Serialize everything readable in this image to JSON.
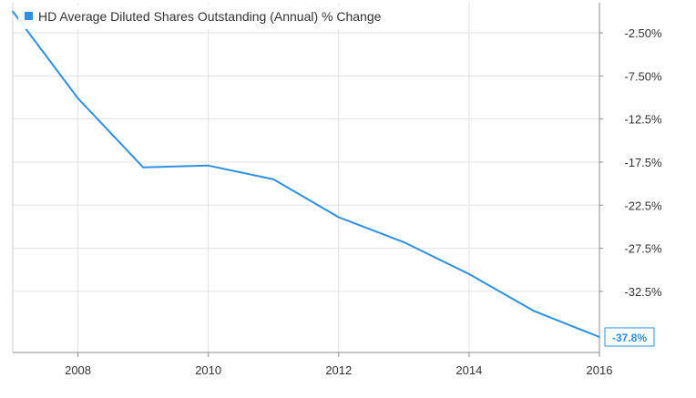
{
  "chart_data": {
    "type": "line",
    "legend": {
      "label": "HD Average Diluted Shares Outstanding (Annual) % Change",
      "placement": "top-left"
    },
    "series": [
      {
        "name": "HD Average Diluted Shares Outstanding (Annual) % Change",
        "color": "#2f8fe0",
        "points": [
          {
            "x": 2007.0,
            "y": 0.0
          },
          {
            "x": 2008.0,
            "y": -10.1
          },
          {
            "x": 2009.0,
            "y": -18.1
          },
          {
            "x": 2010.0,
            "y": -17.9
          },
          {
            "x": 2011.0,
            "y": -19.5
          },
          {
            "x": 2012.0,
            "y": -23.9
          },
          {
            "x": 2013.0,
            "y": -26.8
          },
          {
            "x": 2014.0,
            "y": -30.5
          },
          {
            "x": 2015.0,
            "y": -34.8
          },
          {
            "x": 2016.0,
            "y": -37.8
          }
        ]
      }
    ],
    "x_ticks": [
      "2008",
      "2010",
      "2012",
      "2014",
      "2016"
    ],
    "x_tick_values": [
      2008,
      2010,
      2012,
      2014,
      2016
    ],
    "y_ticks": [
      "-2.50%",
      "-7.50%",
      "-12.5%",
      "-17.5%",
      "-22.5%",
      "-27.5%",
      "-32.5%"
    ],
    "y_tick_values": [
      -2.5,
      -7.5,
      -12.5,
      -17.5,
      -22.5,
      -27.5,
      -32.5
    ],
    "xlim": [
      2007.0,
      2016.0
    ],
    "ylim": [
      -39.6,
      1.0
    ],
    "last_value_label": "-37.8%",
    "grid": true,
    "colors": {
      "line": "#2f8fe0",
      "grid": "#e3e3e3",
      "axis": "#8c8c8c",
      "label_text": "#2f8fe0"
    }
  }
}
